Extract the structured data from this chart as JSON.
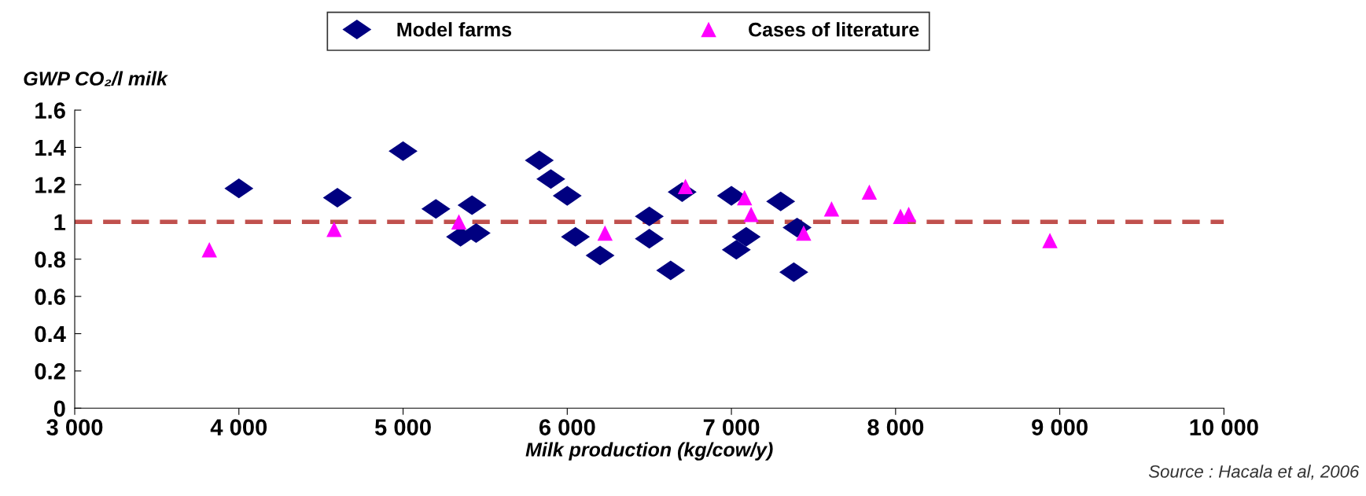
{
  "chart_data": {
    "type": "scatter",
    "ylabel": "GWP CO₂/l milk",
    "xlabel": "Milk production (kg/cow/y)",
    "annotations": [
      "Source : Hacala et al, 2006"
    ],
    "xlim": [
      3000,
      10000
    ],
    "xticks": [
      {
        "value": 3000,
        "label": "3 000"
      },
      {
        "value": 4000,
        "label": "4 000"
      },
      {
        "value": 5000,
        "label": "5 000"
      },
      {
        "value": 6000,
        "label": "6 000"
      },
      {
        "value": 7000,
        "label": "7 000"
      },
      {
        "value": 8000,
        "label": "8 000"
      },
      {
        "value": 9000,
        "label": "9 000"
      },
      {
        "value": 10000,
        "label": "10 000"
      }
    ],
    "ylim": [
      0,
      1.6
    ],
    "yticks": [
      0,
      0.2,
      0.4,
      0.6,
      0.8,
      1,
      1.2,
      1.4,
      1.6
    ],
    "grid": false,
    "legend": "top",
    "ref_lines": [
      {
        "axis": "y",
        "value": 1,
        "color": "#c0504d",
        "line_style": "dashed"
      }
    ],
    "series": [
      {
        "name": "Model farms",
        "color": "#000080",
        "marker": "diamond",
        "x": [
          4000,
          4600,
          5000,
          5200,
          5350,
          5420,
          5445,
          5830,
          5900,
          6000,
          6050,
          6200,
          6500,
          6500,
          6630,
          6700,
          7000,
          7030,
          7090,
          7300,
          7400,
          7380
        ],
        "values": [
          1.18,
          1.13,
          1.38,
          1.07,
          0.92,
          1.09,
          0.94,
          1.33,
          1.23,
          1.14,
          0.92,
          0.82,
          1.03,
          0.91,
          0.74,
          1.16,
          1.14,
          0.85,
          0.92,
          1.11,
          0.97,
          0.73
        ]
      },
      {
        "name": "Cases of literature",
        "color": "#ff00ff",
        "marker": "triangle",
        "x": [
          3820,
          4580,
          5340,
          6230,
          6720,
          7080,
          7120,
          7440,
          7610,
          7840,
          8030,
          8080,
          8940
        ],
        "values": [
          0.85,
          0.96,
          1.0,
          0.94,
          1.19,
          1.13,
          1.04,
          0.94,
          1.07,
          1.16,
          1.03,
          1.04,
          0.9
        ]
      }
    ]
  }
}
